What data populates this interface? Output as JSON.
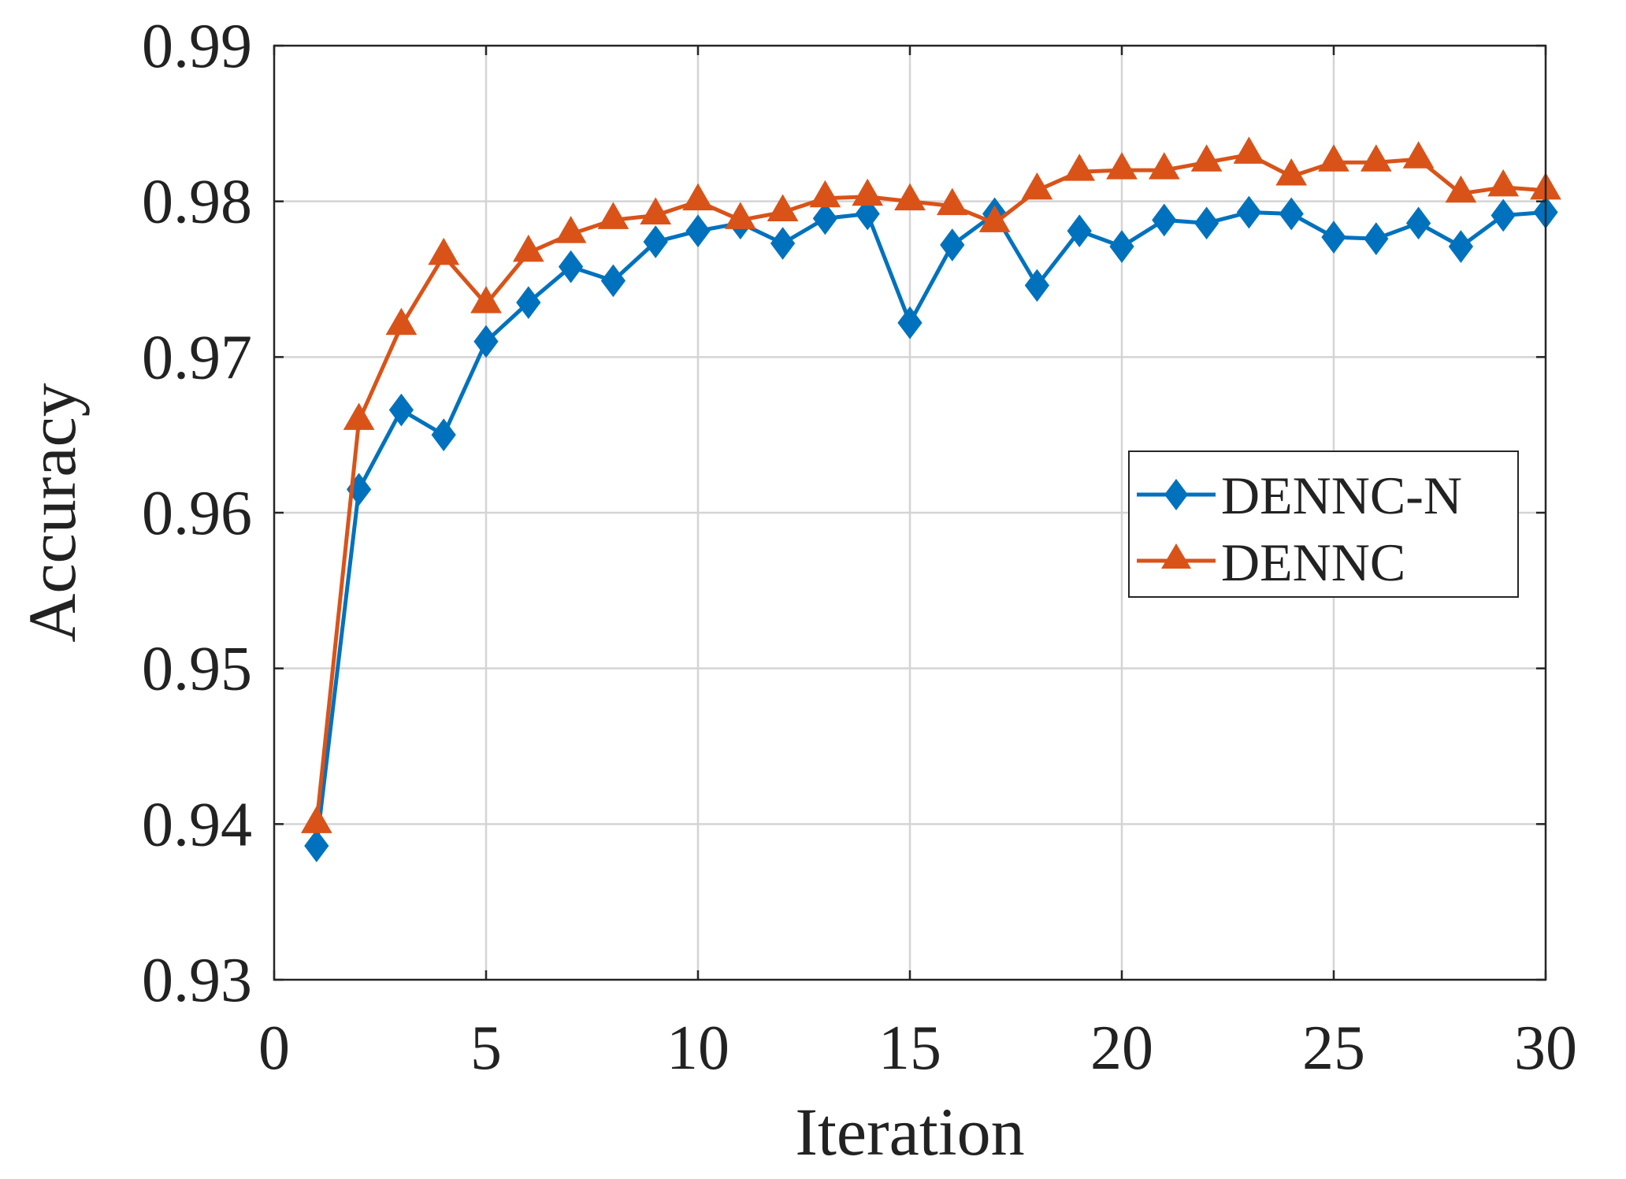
{
  "chart_data": {
    "type": "line",
    "title": "",
    "xlabel": "Iteration",
    "ylabel": "Accuracy",
    "xlim": [
      0,
      30
    ],
    "ylim": [
      0.93,
      0.99
    ],
    "x_ticks": [
      0,
      5,
      10,
      15,
      20,
      25,
      30
    ],
    "x_tick_labels": [
      "0",
      "5",
      "10",
      "15",
      "20",
      "25",
      "30"
    ],
    "y_ticks": [
      0.93,
      0.94,
      0.95,
      0.96,
      0.97,
      0.98,
      0.99
    ],
    "y_tick_labels": [
      "0.93",
      "0.94",
      "0.95",
      "0.96",
      "0.97",
      "0.98",
      "0.99"
    ],
    "grid": true,
    "legend_position": "center-right",
    "x": [
      1,
      2,
      3,
      4,
      5,
      6,
      7,
      8,
      9,
      10,
      11,
      12,
      13,
      14,
      15,
      16,
      17,
      18,
      19,
      20,
      21,
      22,
      23,
      24,
      25,
      26,
      27,
      28,
      29,
      30
    ],
    "series": [
      {
        "name": "DENNC-N",
        "color": "#0072BD",
        "marker": "diamond",
        "values": [
          0.9386,
          0.9615,
          0.9666,
          0.965,
          0.971,
          0.9735,
          0.9758,
          0.9749,
          0.9774,
          0.9781,
          0.9786,
          0.9773,
          0.9789,
          0.9792,
          0.9722,
          0.9772,
          0.9792,
          0.9746,
          0.9781,
          0.9771,
          0.9788,
          0.9786,
          0.9793,
          0.9792,
          0.9777,
          0.9776,
          0.9786,
          0.9771,
          0.9791,
          0.9793
        ]
      },
      {
        "name": "DENNC",
        "color": "#D95319",
        "marker": "triangle",
        "values": [
          0.94,
          0.9659,
          0.972,
          0.9765,
          0.9734,
          0.9767,
          0.9779,
          0.9788,
          0.9791,
          0.98,
          0.9788,
          0.9793,
          0.9802,
          0.9803,
          0.98,
          0.9797,
          0.9786,
          0.9807,
          0.9819,
          0.982,
          0.982,
          0.9825,
          0.983,
          0.9816,
          0.9825,
          0.9825,
          0.9827,
          0.9805,
          0.9809,
          0.9807
        ]
      }
    ]
  }
}
